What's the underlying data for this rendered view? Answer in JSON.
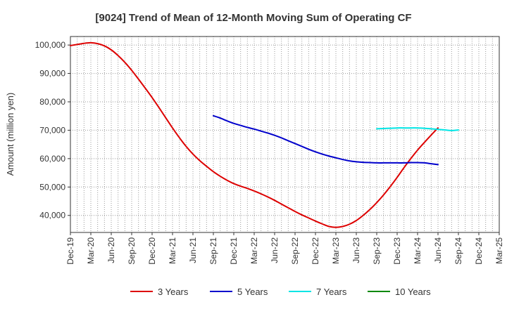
{
  "chart_data": {
    "type": "line",
    "title": "[9024]  Trend of Mean of 12-Month Moving Sum of Operating CF",
    "ylabel": "Amount (million yen)",
    "xlabel": "",
    "ylim": [
      34000,
      103000
    ],
    "yticks": [
      40000,
      50000,
      60000,
      70000,
      80000,
      90000,
      100000
    ],
    "ytick_labels": [
      "40,000",
      "50,000",
      "60,000",
      "70,000",
      "80,000",
      "90,000",
      "100,000"
    ],
    "x_months": [
      "Dec-19",
      "Jan-20",
      "Feb-20",
      "Mar-20",
      "Apr-20",
      "May-20",
      "Jun-20",
      "Jul-20",
      "Aug-20",
      "Sep-20",
      "Oct-20",
      "Nov-20",
      "Dec-20",
      "Jan-21",
      "Feb-21",
      "Mar-21",
      "Apr-21",
      "May-21",
      "Jun-21",
      "Jul-21",
      "Aug-21",
      "Sep-21",
      "Oct-21",
      "Nov-21",
      "Dec-21",
      "Jan-22",
      "Feb-22",
      "Mar-22",
      "Apr-22",
      "May-22",
      "Jun-22",
      "Jul-22",
      "Aug-22",
      "Sep-22",
      "Oct-22",
      "Nov-22",
      "Dec-22",
      "Jan-23",
      "Feb-23",
      "Mar-23",
      "Apr-23",
      "May-23",
      "Jun-23",
      "Jul-23",
      "Aug-23",
      "Sep-23",
      "Oct-23",
      "Nov-23",
      "Dec-23",
      "Jan-24",
      "Feb-24",
      "Mar-24",
      "Apr-24",
      "May-24",
      "Jun-24",
      "Jul-24",
      "Aug-24",
      "Sep-24",
      "Oct-24",
      "Nov-24",
      "Dec-24",
      "Jan-25",
      "Feb-25",
      "Mar-25"
    ],
    "xtick_labels": [
      "Dec-19",
      "Mar-20",
      "Jun-20",
      "Sep-20",
      "Dec-20",
      "Mar-21",
      "Jun-21",
      "Sep-21",
      "Dec-21",
      "Mar-22",
      "Jun-22",
      "Sep-22",
      "Dec-22",
      "Mar-23",
      "Jun-23",
      "Sep-23",
      "Dec-23",
      "Mar-24",
      "Jun-24",
      "Sep-24",
      "Dec-24",
      "Mar-25"
    ],
    "grid": true,
    "legend_position": "bottom",
    "series": [
      {
        "name": "3 Years",
        "color": "#dd0000",
        "start_index": 0,
        "values": [
          99800,
          100200,
          100600,
          100800,
          100500,
          99700,
          98300,
          96300,
          93900,
          91100,
          88000,
          84800,
          81500,
          78000,
          74400,
          70800,
          67400,
          64300,
          61600,
          59300,
          57300,
          55400,
          53800,
          52400,
          51200,
          50300,
          49500,
          48600,
          47600,
          46500,
          45300,
          44000,
          42700,
          41400,
          40200,
          39100,
          38000,
          37000,
          36100,
          35800,
          36100,
          36900,
          38200,
          40000,
          42100,
          44500,
          47200,
          50200,
          53400,
          56800,
          60000,
          63000,
          65700,
          68300,
          70800
        ]
      },
      {
        "name": "5 Years",
        "color": "#0000cc",
        "start_index": 21,
        "values": [
          75100,
          74300,
          73300,
          72400,
          71700,
          71000,
          70400,
          69700,
          69000,
          68200,
          67300,
          66300,
          65300,
          64300,
          63300,
          62400,
          61600,
          60900,
          60300,
          59700,
          59200,
          58900,
          58700,
          58600,
          58500,
          58500,
          58500,
          58500,
          58500,
          58600,
          58600,
          58500,
          58200,
          57900
        ]
      },
      {
        "name": "7 Years",
        "color": "#00e5e5",
        "start_index": 45,
        "values": [
          70500,
          70600,
          70700,
          70800,
          70800,
          70800,
          70800,
          70700,
          70500,
          70300,
          70100,
          69900,
          70100
        ]
      },
      {
        "name": "10 Years",
        "color": "#008800",
        "start_index": 0,
        "values": []
      }
    ]
  }
}
